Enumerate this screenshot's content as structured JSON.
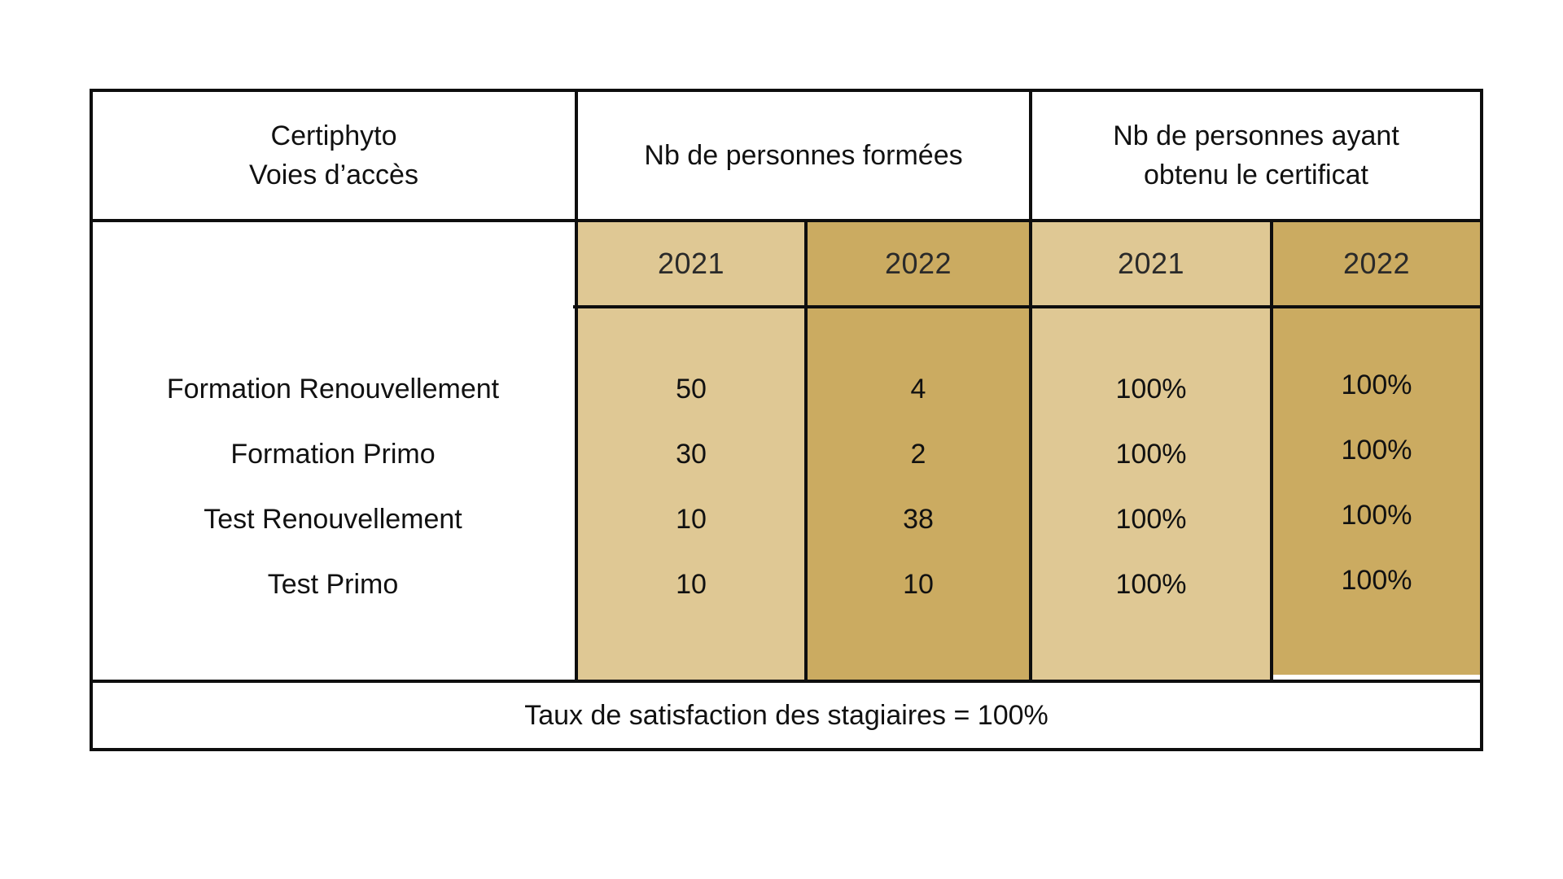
{
  "header": {
    "col1": "Certiphyto\nVoies d’accès",
    "col2": "Nb de personnes formées",
    "col3": "Nb de personnes ayant\nobtenu le certificat"
  },
  "years": [
    "2021",
    "2022",
    "2021",
    "2022"
  ],
  "rows": [
    {
      "label": "Formation Renouvellement",
      "formees_2021": "50",
      "formees_2022": "4",
      "certif_2021": "100%",
      "certif_2022": "100%"
    },
    {
      "label": "Formation Primo",
      "formees_2021": "30",
      "formees_2022": "2",
      "certif_2021": "100%",
      "certif_2022": "100%"
    },
    {
      "label": "Test Renouvellement",
      "formees_2021": "10",
      "formees_2022": "38",
      "certif_2021": "100%",
      "certif_2022": "100%"
    },
    {
      "label": "Test Primo",
      "formees_2021": "10",
      "formees_2022": "10",
      "certif_2021": "100%",
      "certif_2022": "100%"
    }
  ],
  "footer": "Taux de satisfaction des stagiaires = 100%",
  "colors": {
    "light_gold": "#dfc894",
    "dark_gold": "#cbab61",
    "border": "#0e0e0e"
  }
}
